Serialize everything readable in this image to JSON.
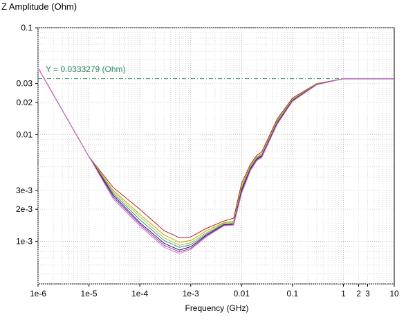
{
  "chart_data": {
    "type": "line",
    "title": "",
    "ylabel": "Z Amplitude (Ohm)",
    "xlabel": "Frequency (GHz)",
    "x_scale": "log",
    "y_scale": "log",
    "xlim": [
      1e-06,
      10
    ],
    "ylim": [
      0.0004,
      0.1
    ],
    "x_ticks": [
      {
        "value": 1e-06,
        "label": "1e-6"
      },
      {
        "value": 1e-05,
        "label": "1e-5"
      },
      {
        "value": 0.0001,
        "label": "1e-4"
      },
      {
        "value": 0.001,
        "label": "1e-3"
      },
      {
        "value": 0.01,
        "label": "0.01"
      },
      {
        "value": 0.1,
        "label": "0.1"
      },
      {
        "value": 1,
        "label": "1"
      },
      {
        "value": 2,
        "label": "2"
      },
      {
        "value": 3,
        "label": "3"
      },
      {
        "value": 10,
        "label": "10"
      }
    ],
    "y_ticks": [
      {
        "value": 0.1,
        "label": "0.1"
      },
      {
        "value": 0.03,
        "label": "0.03"
      },
      {
        "value": 0.02,
        "label": "0.02"
      },
      {
        "value": 0.01,
        "label": "0.01"
      },
      {
        "value": 0.003,
        "label": "3e-3"
      },
      {
        "value": 0.002,
        "label": "2e-3"
      },
      {
        "value": 0.001,
        "label": "1e-3"
      }
    ],
    "grid": true,
    "reference_line": {
      "y": 0.0333279,
      "label": "Y = 0.0333279 (Ohm)",
      "color": "#2e8b57"
    },
    "series": [
      {
        "color": "#b22222",
        "x": [
          1e-06,
          1e-05,
          3e-05,
          0.0001,
          0.0003,
          0.0006,
          0.001,
          0.002,
          0.0045,
          0.007,
          0.01,
          0.015,
          0.02,
          0.025,
          0.05,
          0.1,
          0.3,
          1,
          10
        ],
        "y": [
          0.042,
          0.0062,
          0.0032,
          0.002,
          0.00126,
          0.00108,
          0.0011,
          0.00132,
          0.00155,
          0.00165,
          0.0035,
          0.0053,
          0.0064,
          0.0069,
          0.014,
          0.022,
          0.03,
          0.0333,
          0.0333
        ]
      },
      {
        "color": "#c8a000",
        "x": [
          1e-06,
          1e-05,
          3e-05,
          0.0001,
          0.0003,
          0.0006,
          0.001,
          0.002,
          0.0045,
          0.007,
          0.01,
          0.015,
          0.02,
          0.025,
          0.05,
          0.1,
          0.3,
          1,
          10
        ],
        "y": [
          0.042,
          0.0062,
          0.003,
          0.0018,
          0.00115,
          0.00098,
          0.00102,
          0.00125,
          0.0015,
          0.00155,
          0.0033,
          0.0051,
          0.0062,
          0.0066,
          0.0135,
          0.0215,
          0.0298,
          0.0333,
          0.0333
        ]
      },
      {
        "color": "#9acd32",
        "x": [
          1e-06,
          1e-05,
          3e-05,
          0.0001,
          0.0003,
          0.0006,
          0.001,
          0.002,
          0.0045,
          0.007,
          0.01,
          0.015,
          0.02,
          0.025,
          0.05,
          0.1,
          0.3,
          1,
          10
        ],
        "y": [
          0.042,
          0.0062,
          0.0029,
          0.0017,
          0.00108,
          0.00092,
          0.00097,
          0.0012,
          0.00148,
          0.0015,
          0.0032,
          0.005,
          0.0061,
          0.0065,
          0.0132,
          0.0212,
          0.0296,
          0.0333,
          0.0333
        ]
      },
      {
        "color": "#4682b4",
        "x": [
          1e-06,
          1e-05,
          3e-05,
          0.0001,
          0.0003,
          0.0006,
          0.001,
          0.002,
          0.0045,
          0.007,
          0.01,
          0.015,
          0.02,
          0.025,
          0.05,
          0.1,
          0.3,
          1,
          10
        ],
        "y": [
          0.042,
          0.0062,
          0.0028,
          0.0016,
          0.00102,
          0.00088,
          0.00093,
          0.00117,
          0.00145,
          0.00147,
          0.0031,
          0.0049,
          0.006,
          0.0064,
          0.013,
          0.021,
          0.0295,
          0.0333,
          0.0333
        ]
      },
      {
        "color": "#222222",
        "x": [
          1e-06,
          1e-05,
          3e-05,
          0.0001,
          0.0003,
          0.0006,
          0.001,
          0.002,
          0.0045,
          0.007,
          0.01,
          0.015,
          0.02,
          0.025,
          0.05,
          0.1,
          0.3,
          1,
          10
        ],
        "y": [
          0.042,
          0.0062,
          0.0027,
          0.0015,
          0.00096,
          0.00083,
          0.00089,
          0.00114,
          0.00143,
          0.00145,
          0.003,
          0.0048,
          0.0059,
          0.0063,
          0.0128,
          0.0208,
          0.0294,
          0.0333,
          0.0333
        ]
      },
      {
        "color": "#9932cc",
        "x": [
          1e-06,
          1e-05,
          3e-05,
          0.0001,
          0.0003,
          0.0006,
          0.001,
          0.002,
          0.0045,
          0.007,
          0.01,
          0.015,
          0.02,
          0.025,
          0.05,
          0.1,
          0.3,
          1,
          10
        ],
        "y": [
          0.042,
          0.0062,
          0.0026,
          0.00145,
          0.00092,
          0.0008,
          0.00086,
          0.00112,
          0.00141,
          0.00143,
          0.0029,
          0.0047,
          0.0058,
          0.0062,
          0.0126,
          0.0206,
          0.0293,
          0.0333,
          0.0333
        ]
      },
      {
        "color": "#da70d6",
        "x": [
          1e-06,
          1e-05,
          3e-05,
          0.0001,
          0.0003,
          0.0006,
          0.001,
          0.002,
          0.0045,
          0.007,
          0.01,
          0.015,
          0.02,
          0.025,
          0.05,
          0.1,
          0.3,
          1,
          10
        ],
        "y": [
          0.042,
          0.0062,
          0.0025,
          0.0014,
          0.00088,
          0.00077,
          0.00084,
          0.0011,
          0.0014,
          0.00142,
          0.0028,
          0.0046,
          0.0057,
          0.0061,
          0.0124,
          0.0204,
          0.0292,
          0.0333,
          0.0333
        ]
      }
    ]
  }
}
